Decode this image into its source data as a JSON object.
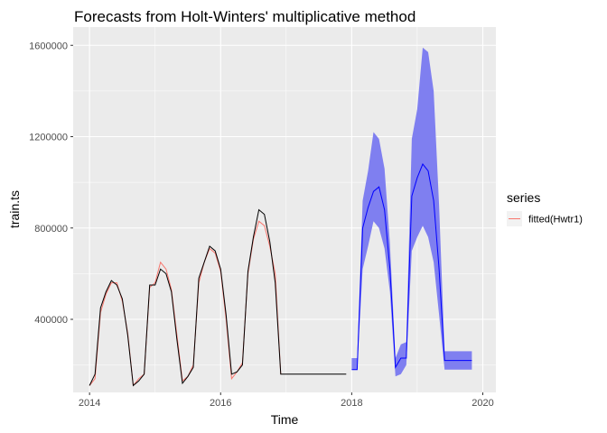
{
  "chart_data": {
    "type": "line",
    "title": "Forecasts from Holt-Winters' multiplicative method",
    "xlabel": "Time",
    "ylabel": "train.ts",
    "xlim": [
      2013.75,
      2020.2
    ],
    "ylim": [
      80000,
      1680000
    ],
    "x_ticks": [
      2014,
      2016,
      2018,
      2020
    ],
    "x_tick_labels": [
      "2014",
      "2016",
      "2018",
      "2020"
    ],
    "y_ticks": [
      400000,
      800000,
      1200000,
      1600000
    ],
    "y_tick_labels": [
      "400000",
      "800000",
      "1200000",
      "1600000"
    ],
    "grid": true,
    "legend": {
      "title": "series",
      "position": "right"
    },
    "colors": {
      "panel": "#ebebeb",
      "grid_major": "#ffffff",
      "actual": "#000000",
      "fitted": "#f8766d",
      "forecast": "#0000ff",
      "interval": "#7f7ff0"
    },
    "actual": {
      "x": [
        2014.0,
        2014.083,
        2014.167,
        2014.25,
        2014.333,
        2014.417,
        2014.5,
        2014.583,
        2014.667,
        2014.75,
        2014.833,
        2014.917,
        2015.0,
        2015.083,
        2015.167,
        2015.25,
        2015.333,
        2015.417,
        2015.5,
        2015.583,
        2015.667,
        2015.75,
        2015.833,
        2015.917,
        2016.0,
        2016.083,
        2016.167,
        2016.25,
        2016.333,
        2016.417,
        2016.5,
        2016.583,
        2016.667,
        2016.75,
        2016.833,
        2016.917,
        2017.0,
        2017.083,
        2017.167,
        2017.25,
        2017.333,
        2017.417,
        2017.5,
        2017.583,
        2017.667,
        2017.75,
        2017.833,
        2017.917
      ],
      "y": [
        110000,
        160000,
        450000,
        520000,
        570000,
        550000,
        490000,
        330000,
        110000,
        130000,
        160000,
        550000,
        550000,
        620000,
        600000,
        520000,
        310000,
        120000,
        150000,
        190000,
        580000,
        650000,
        720000,
        700000,
        620000,
        420000,
        160000,
        170000,
        200000,
        610000,
        760000,
        880000,
        860000,
        740000,
        560000,
        160000,
        160000,
        160000,
        160000,
        160000,
        160000,
        160000,
        160000,
        160000,
        160000,
        160000,
        160000,
        160000
      ]
    },
    "series": [
      {
        "name": "fitted(Hwtr1)",
        "x": [
          2014.0,
          2014.083,
          2014.167,
          2014.25,
          2014.333,
          2014.417,
          2014.5,
          2014.583,
          2014.667,
          2014.75,
          2014.833,
          2014.917,
          2015.0,
          2015.083,
          2015.167,
          2015.25,
          2015.333,
          2015.417,
          2015.5,
          2015.583,
          2015.667,
          2015.75,
          2015.833,
          2015.917,
          2016.0,
          2016.083,
          2016.167,
          2016.25,
          2016.333,
          2016.417,
          2016.5,
          2016.583,
          2016.667,
          2016.75,
          2016.833,
          2016.917
        ],
        "y": [
          110000,
          140000,
          430000,
          510000,
          560000,
          560000,
          480000,
          340000,
          110000,
          140000,
          160000,
          540000,
          560000,
          650000,
          620000,
          530000,
          330000,
          130000,
          150000,
          200000,
          560000,
          650000,
          710000,
          690000,
          610000,
          400000,
          140000,
          170000,
          210000,
          600000,
          750000,
          830000,
          810000,
          720000,
          600000,
          160000
        ]
      }
    ],
    "forecast": {
      "x": [
        2018.0,
        2018.083,
        2018.167,
        2018.25,
        2018.333,
        2018.417,
        2018.5,
        2018.583,
        2018.667,
        2018.75,
        2018.833,
        2018.917,
        2019.0,
        2019.083,
        2019.167,
        2019.25,
        2019.333,
        2019.417,
        2019.5,
        2019.583,
        2019.667,
        2019.75,
        2019.833
      ],
      "mean": [
        180000,
        180000,
        800000,
        890000,
        960000,
        980000,
        880000,
        620000,
        190000,
        230000,
        230000,
        940000,
        1020000,
        1080000,
        1050000,
        920000,
        620000,
        220000,
        220000,
        220000,
        220000,
        220000,
        220000
      ],
      "lower": [
        180000,
        180000,
        620000,
        720000,
        830000,
        800000,
        710000,
        520000,
        150000,
        160000,
        200000,
        700000,
        760000,
        810000,
        760000,
        650000,
        420000,
        180000,
        180000,
        180000,
        180000,
        180000,
        180000
      ],
      "upper": [
        230000,
        230000,
        920000,
        1050000,
        1220000,
        1190000,
        1060000,
        730000,
        230000,
        290000,
        300000,
        1190000,
        1320000,
        1590000,
        1570000,
        1400000,
        900000,
        260000,
        260000,
        260000,
        260000,
        260000,
        260000
      ]
    }
  }
}
